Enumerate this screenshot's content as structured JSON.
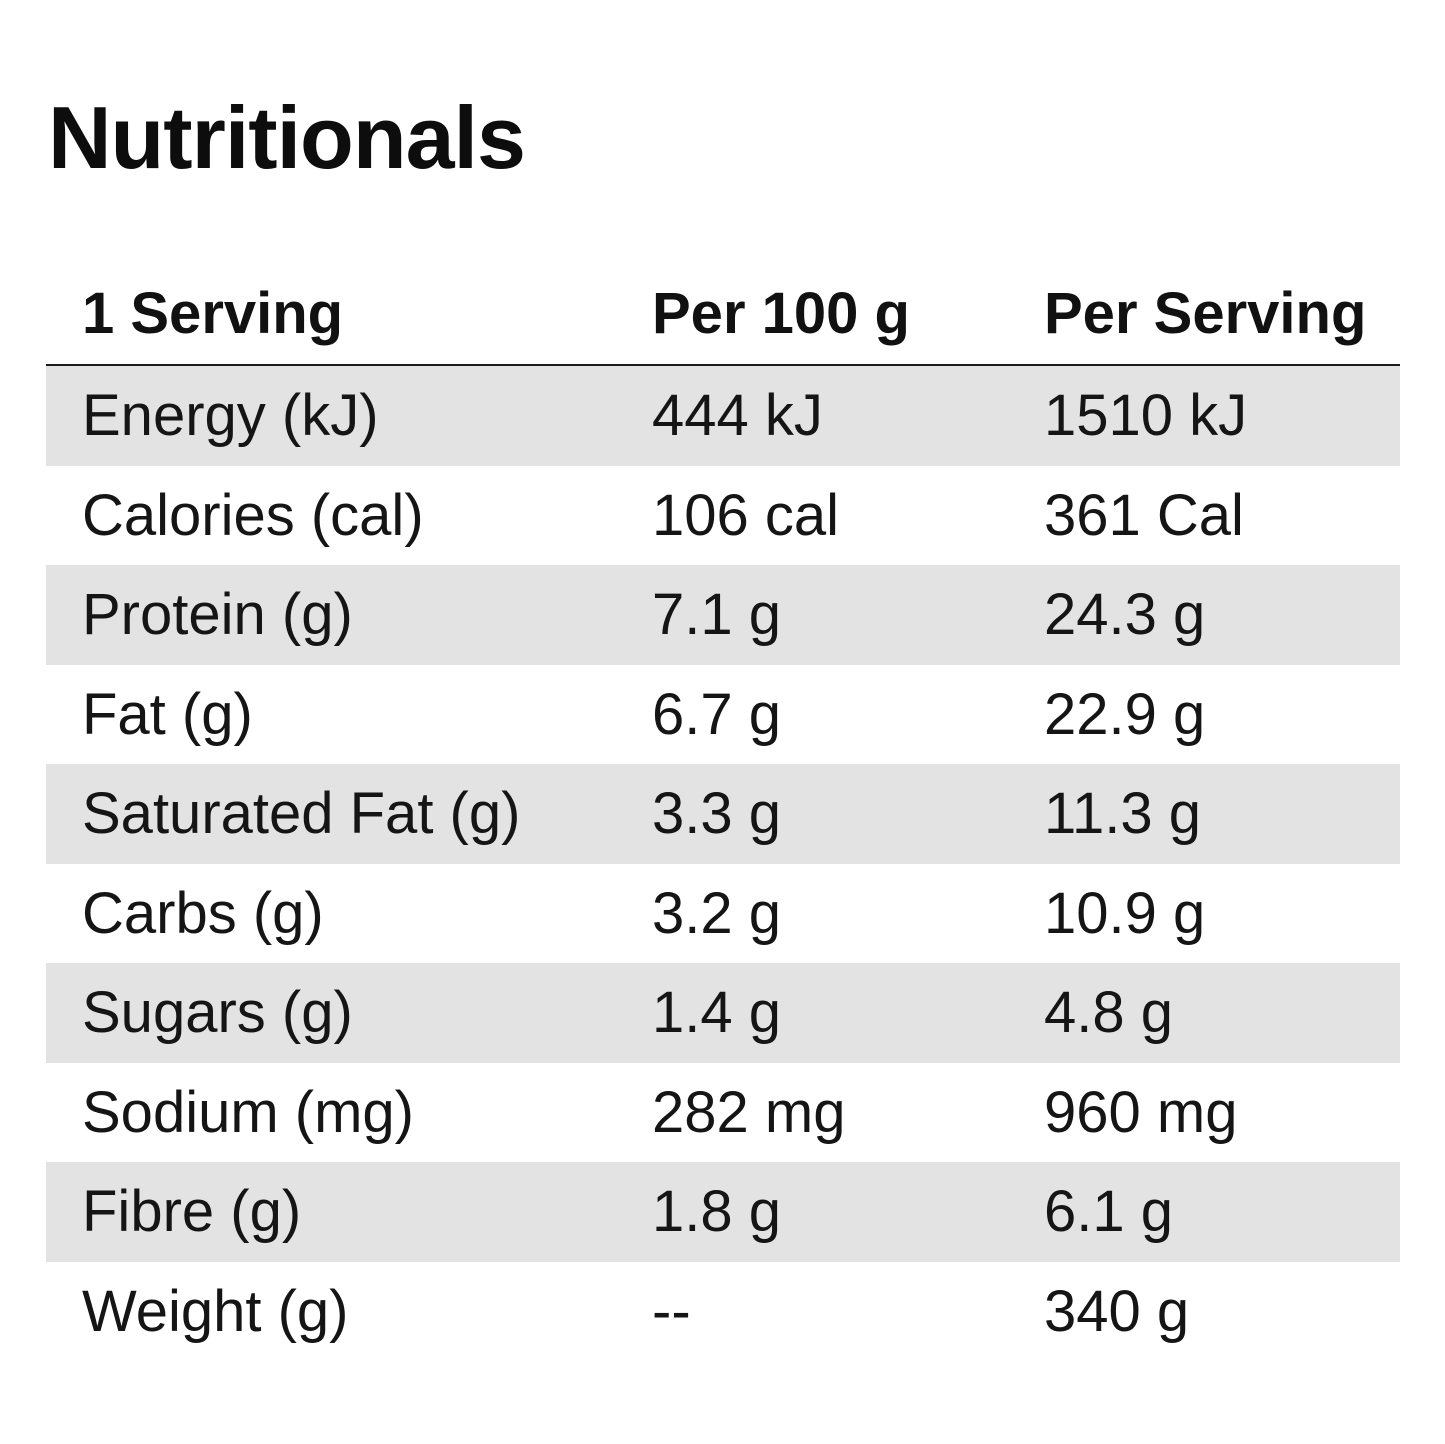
{
  "title": "Nutritionals",
  "table": {
    "headers": [
      "1 Serving",
      "Per 100 g",
      "Per Serving"
    ],
    "rows": [
      [
        "Energy (kJ)",
        "444 kJ",
        "1510 kJ"
      ],
      [
        "Calories (cal)",
        "106 cal",
        "361 Cal"
      ],
      [
        "Protein (g)",
        "7.1 g",
        "24.3 g"
      ],
      [
        "Fat (g)",
        "6.7 g",
        "22.9 g"
      ],
      [
        "Saturated Fat (g)",
        "3.3 g",
        "11.3 g"
      ],
      [
        "Carbs (g)",
        "3.2 g",
        "10.9 g"
      ],
      [
        "Sugars (g)",
        "1.4 g",
        "4.8 g"
      ],
      [
        "Sodium (mg)",
        "282 mg",
        "960 mg"
      ],
      [
        "Fibre (g)",
        "1.8 g",
        "6.1 g"
      ],
      [
        "Weight (g)",
        "--",
        "340 g"
      ]
    ]
  },
  "colors": {
    "shaded_row": "#e3e3e3",
    "text": "#111111",
    "background": "#ffffff"
  }
}
